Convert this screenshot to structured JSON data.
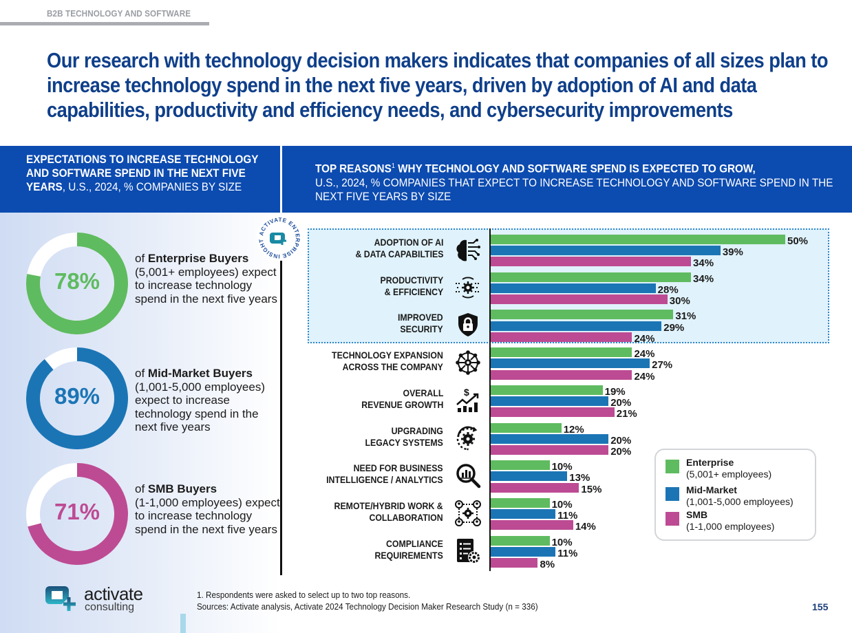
{
  "section_tag": "B2B TECHNOLOGY AND SOFTWARE",
  "headline": "Our research with technology decision makers indicates that companies of all sizes plan to increase technology spend in the next five years, driven by adoption of AI and data capabilities, productivity and efficiency needs, and cybersecurity improvements",
  "left_header": {
    "bold": "EXPECTATIONS TO INCREASE TECHNOLOGY AND SOFTWARE SPEND IN THE NEXT FIVE YEARS",
    "normal": ", U.S., 2024, % COMPANIES BY SIZE"
  },
  "right_header": {
    "bold": "TOP REASONS",
    "sup": "1",
    "bold2": " WHY TECHNOLOGY AND SOFTWARE SPEND IS EXPECTED TO GROW,",
    "normal": "U.S., 2024, % COMPANIES THAT EXPECT TO INCREASE TECHNOLOGY AND SOFTWARE SPEND IN THE NEXT FIVE YEARS BY SIZE"
  },
  "badge": {
    "text": "ACTIVATE ENTERPRISE INSIGHT"
  },
  "colors": {
    "enterprise": "#5fbb5f",
    "midmarket": "#1b75b5",
    "smb": "#bd4b93",
    "header_band": "#0c4bb0",
    "headline": "#0f3f8a",
    "highlight": "#e0f2fb"
  },
  "donuts": [
    {
      "value": 78,
      "label": "78%",
      "pre": "of ",
      "segment": "Enterprise Buyers",
      "detail": "(5,001+ employees) expect to increase technology spend in the next five years",
      "color": "#5fbb5f"
    },
    {
      "value": 89,
      "label": "89%",
      "pre": "of ",
      "segment": "Mid-Market Buyers",
      "detail": "(1,001-5,000 employees) expect to increase technology spend in the next five years",
      "color": "#1b75b5"
    },
    {
      "value": 71,
      "label": "71%",
      "pre": "of ",
      "segment": "SMB Buyers",
      "detail": "(1-1,000 employees) expect to increase technology spend in the next five years",
      "color": "#bd4b93"
    }
  ],
  "chart_data": [
    {
      "type": "pie",
      "title": "Expectations to increase technology and software spend in the next five years, U.S., 2024, % companies by size",
      "categories": [
        "Enterprise Buyers (5,001+ employees)",
        "Mid-Market Buyers (1,001-5,000 employees)",
        "SMB Buyers (1-1,000 employees)"
      ],
      "values": [
        78,
        89,
        71
      ],
      "unit": "%"
    },
    {
      "type": "bar",
      "orientation": "horizontal",
      "title": "Top reasons why technology and software spend is expected to grow, U.S., 2024",
      "subtitle": "% companies that expect to increase technology and software spend in the next five years by size",
      "categories": [
        "ADOPTION OF AI & DATA CAPABILTIES",
        "PRODUCTIVITY & EFFICIENCY",
        "IMPROVED SECURITY",
        "TECHNOLOGY EXPANSION ACROSS THE COMPANY",
        "OVERALL REVENUE GROWTH",
        "UPGRADING LEGACY SYSTEMS",
        "NEED FOR BUSINESS INTELLIGENCE / ANALYTICS",
        "REMOTE/HYBRID WORK & COLLABORATION",
        "COMPLIANCE REQUIREMENTS"
      ],
      "category_lines": [
        [
          "ADOPTION OF AI",
          "& DATA CAPABILTIES"
        ],
        [
          "PRODUCTIVITY",
          "& EFFICIENCY"
        ],
        [
          "IMPROVED",
          "SECURITY"
        ],
        [
          "TECHNOLOGY EXPANSION",
          "ACROSS THE COMPANY"
        ],
        [
          "OVERALL",
          "REVENUE GROWTH"
        ],
        [
          "UPGRADING",
          "LEGACY SYSTEMS"
        ],
        [
          "NEED FOR BUSINESS",
          "INTELLIGENCE / ANALYTICS"
        ],
        [
          "REMOTE/HYBRID WORK &",
          "COLLABORATION"
        ],
        [
          "COMPLIANCE",
          "REQUIREMENTS"
        ]
      ],
      "icons": [
        "brain-circuit-icon",
        "gear-network-icon",
        "shield-lock-icon",
        "network-hub-icon",
        "revenue-growth-icon",
        "gear-refresh-icon",
        "magnifier-chart-icon",
        "team-gear-icon",
        "checklist-gear-icon"
      ],
      "series": [
        {
          "name": "Enterprise",
          "sub": "(5,001+ employees)",
          "color": "#5fbb5f",
          "values": [
            50,
            34,
            31,
            24,
            19,
            12,
            10,
            10,
            10
          ]
        },
        {
          "name": "Mid-Market",
          "sub": "(1,001-5,000 employees)",
          "color": "#1b75b5",
          "values": [
            39,
            28,
            29,
            27,
            20,
            20,
            13,
            11,
            11
          ]
        },
        {
          "name": "SMB",
          "sub": "(1-1,000 employees)",
          "color": "#bd4b93",
          "values": [
            34,
            30,
            24,
            24,
            21,
            20,
            15,
            14,
            8
          ]
        }
      ],
      "highlighted_categories": 3,
      "value_format": "{v}%",
      "xlim": [
        0,
        50
      ],
      "grid": false,
      "legend": "bottom-right"
    }
  ],
  "footer": {
    "logo_word": "activate",
    "logo_sub": "consulting",
    "note": "1. Respondents were asked to select up to two top reasons.",
    "sources": "Sources: Activate analysis, Activate 2024 Technology Decision Maker Research Study (n = 336)",
    "page": "155"
  }
}
